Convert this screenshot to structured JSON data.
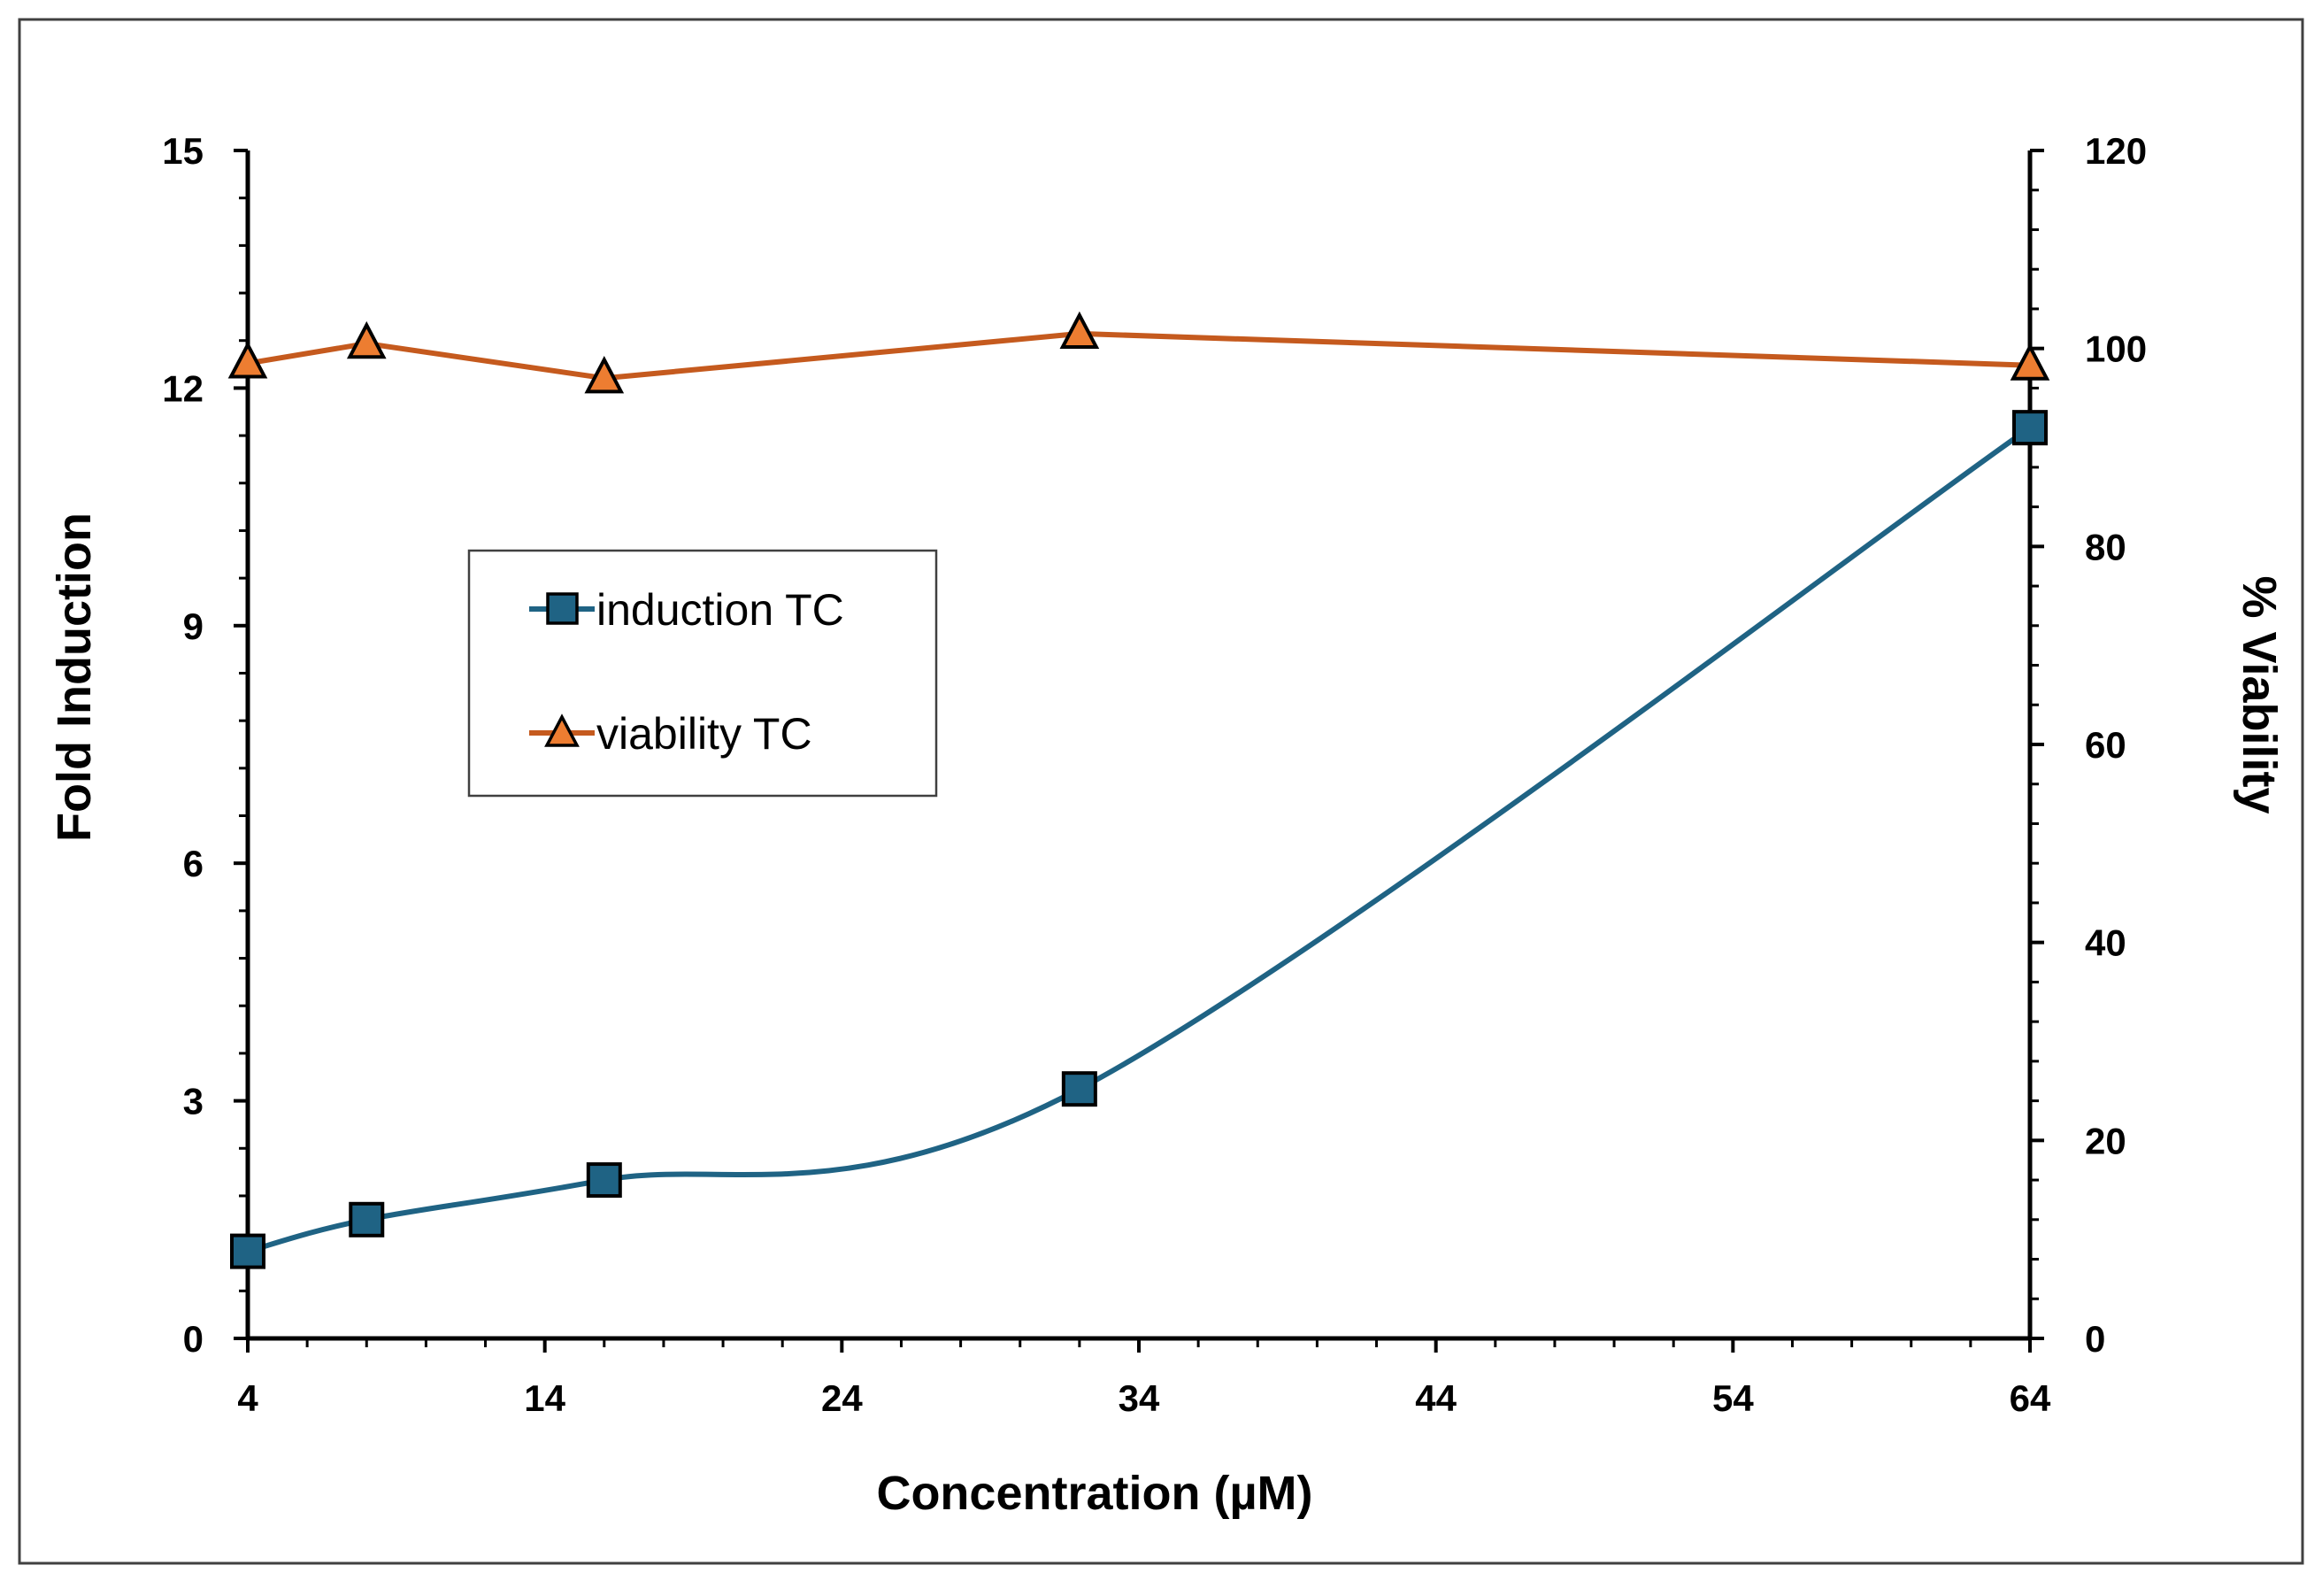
{
  "chart_data": {
    "type": "line",
    "title": "",
    "xlabel": "Concentration (µM)",
    "ylabel_left": "Fold Induction",
    "ylabel_right": "% Viability",
    "xlim": [
      4,
      64
    ],
    "ylim_left": [
      0,
      15
    ],
    "ylim_right": [
      0,
      120
    ],
    "x_ticks": [
      4,
      14,
      24,
      34,
      44,
      54,
      64
    ],
    "y_left_ticks": [
      0,
      3,
      6,
      9,
      12,
      15
    ],
    "y_right_ticks": [
      0,
      20,
      40,
      60,
      80,
      100,
      120
    ],
    "grid": false,
    "legend_position": "center-left",
    "series": [
      {
        "name": "induction TC",
        "axis": "left",
        "marker": "square",
        "smooth": true,
        "color": "#1f6384",
        "marker_fill": "#1f6384",
        "x": [
          4,
          8,
          16,
          32,
          64
        ],
        "values": [
          1.1,
          1.5,
          2.0,
          3.15,
          11.5
        ]
      },
      {
        "name": "viability TC",
        "axis": "right",
        "marker": "triangle",
        "smooth": false,
        "color": "#c55a1e",
        "marker_fill": "#ed7d31",
        "x": [
          4,
          8,
          16,
          32,
          64
        ],
        "values": [
          98.5,
          100.5,
          97,
          101.5,
          98.3
        ]
      }
    ]
  },
  "colors": {
    "frame": "#404040",
    "axis": "#000000",
    "legend_border": "#404040",
    "marker_outline": "#000000"
  }
}
